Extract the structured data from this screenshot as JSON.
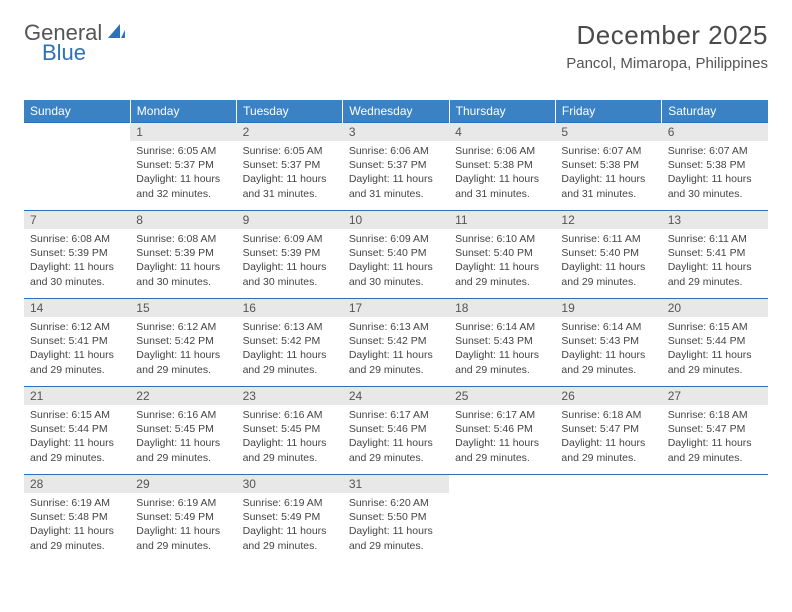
{
  "logo": {
    "general": "General",
    "blue": "Blue"
  },
  "title": "December 2025",
  "location": "Pancol, Mimaropa, Philippines",
  "colors": {
    "header_bg": "#3b82c4",
    "header_text": "#ffffff",
    "day_num_bg": "#e8e8e8",
    "week_border": "#2d72b8",
    "body_text": "#444444",
    "logo_blue": "#2d72b8",
    "logo_gray": "#555555"
  },
  "typography": {
    "title_fontsize": 26,
    "location_fontsize": 15,
    "weekday_fontsize": 12,
    "daynum_fontsize": 12,
    "body_fontsize": 10.5
  },
  "weekdays": [
    "Sunday",
    "Monday",
    "Tuesday",
    "Wednesday",
    "Thursday",
    "Friday",
    "Saturday"
  ],
  "weeks": [
    [
      null,
      {
        "n": "1",
        "sr": "6:05 AM",
        "ss": "5:37 PM",
        "dl": "11 hours and 32 minutes."
      },
      {
        "n": "2",
        "sr": "6:05 AM",
        "ss": "5:37 PM",
        "dl": "11 hours and 31 minutes."
      },
      {
        "n": "3",
        "sr": "6:06 AM",
        "ss": "5:37 PM",
        "dl": "11 hours and 31 minutes."
      },
      {
        "n": "4",
        "sr": "6:06 AM",
        "ss": "5:38 PM",
        "dl": "11 hours and 31 minutes."
      },
      {
        "n": "5",
        "sr": "6:07 AM",
        "ss": "5:38 PM",
        "dl": "11 hours and 31 minutes."
      },
      {
        "n": "6",
        "sr": "6:07 AM",
        "ss": "5:38 PM",
        "dl": "11 hours and 30 minutes."
      }
    ],
    [
      {
        "n": "7",
        "sr": "6:08 AM",
        "ss": "5:39 PM",
        "dl": "11 hours and 30 minutes."
      },
      {
        "n": "8",
        "sr": "6:08 AM",
        "ss": "5:39 PM",
        "dl": "11 hours and 30 minutes."
      },
      {
        "n": "9",
        "sr": "6:09 AM",
        "ss": "5:39 PM",
        "dl": "11 hours and 30 minutes."
      },
      {
        "n": "10",
        "sr": "6:09 AM",
        "ss": "5:40 PM",
        "dl": "11 hours and 30 minutes."
      },
      {
        "n": "11",
        "sr": "6:10 AM",
        "ss": "5:40 PM",
        "dl": "11 hours and 29 minutes."
      },
      {
        "n": "12",
        "sr": "6:11 AM",
        "ss": "5:40 PM",
        "dl": "11 hours and 29 minutes."
      },
      {
        "n": "13",
        "sr": "6:11 AM",
        "ss": "5:41 PM",
        "dl": "11 hours and 29 minutes."
      }
    ],
    [
      {
        "n": "14",
        "sr": "6:12 AM",
        "ss": "5:41 PM",
        "dl": "11 hours and 29 minutes."
      },
      {
        "n": "15",
        "sr": "6:12 AM",
        "ss": "5:42 PM",
        "dl": "11 hours and 29 minutes."
      },
      {
        "n": "16",
        "sr": "6:13 AM",
        "ss": "5:42 PM",
        "dl": "11 hours and 29 minutes."
      },
      {
        "n": "17",
        "sr": "6:13 AM",
        "ss": "5:42 PM",
        "dl": "11 hours and 29 minutes."
      },
      {
        "n": "18",
        "sr": "6:14 AM",
        "ss": "5:43 PM",
        "dl": "11 hours and 29 minutes."
      },
      {
        "n": "19",
        "sr": "6:14 AM",
        "ss": "5:43 PM",
        "dl": "11 hours and 29 minutes."
      },
      {
        "n": "20",
        "sr": "6:15 AM",
        "ss": "5:44 PM",
        "dl": "11 hours and 29 minutes."
      }
    ],
    [
      {
        "n": "21",
        "sr": "6:15 AM",
        "ss": "5:44 PM",
        "dl": "11 hours and 29 minutes."
      },
      {
        "n": "22",
        "sr": "6:16 AM",
        "ss": "5:45 PM",
        "dl": "11 hours and 29 minutes."
      },
      {
        "n": "23",
        "sr": "6:16 AM",
        "ss": "5:45 PM",
        "dl": "11 hours and 29 minutes."
      },
      {
        "n": "24",
        "sr": "6:17 AM",
        "ss": "5:46 PM",
        "dl": "11 hours and 29 minutes."
      },
      {
        "n": "25",
        "sr": "6:17 AM",
        "ss": "5:46 PM",
        "dl": "11 hours and 29 minutes."
      },
      {
        "n": "26",
        "sr": "6:18 AM",
        "ss": "5:47 PM",
        "dl": "11 hours and 29 minutes."
      },
      {
        "n": "27",
        "sr": "6:18 AM",
        "ss": "5:47 PM",
        "dl": "11 hours and 29 minutes."
      }
    ],
    [
      {
        "n": "28",
        "sr": "6:19 AM",
        "ss": "5:48 PM",
        "dl": "11 hours and 29 minutes."
      },
      {
        "n": "29",
        "sr": "6:19 AM",
        "ss": "5:49 PM",
        "dl": "11 hours and 29 minutes."
      },
      {
        "n": "30",
        "sr": "6:19 AM",
        "ss": "5:49 PM",
        "dl": "11 hours and 29 minutes."
      },
      {
        "n": "31",
        "sr": "6:20 AM",
        "ss": "5:50 PM",
        "dl": "11 hours and 29 minutes."
      },
      null,
      null,
      null
    ]
  ],
  "labels": {
    "sunrise": "Sunrise:",
    "sunset": "Sunset:",
    "daylight": "Daylight:"
  }
}
